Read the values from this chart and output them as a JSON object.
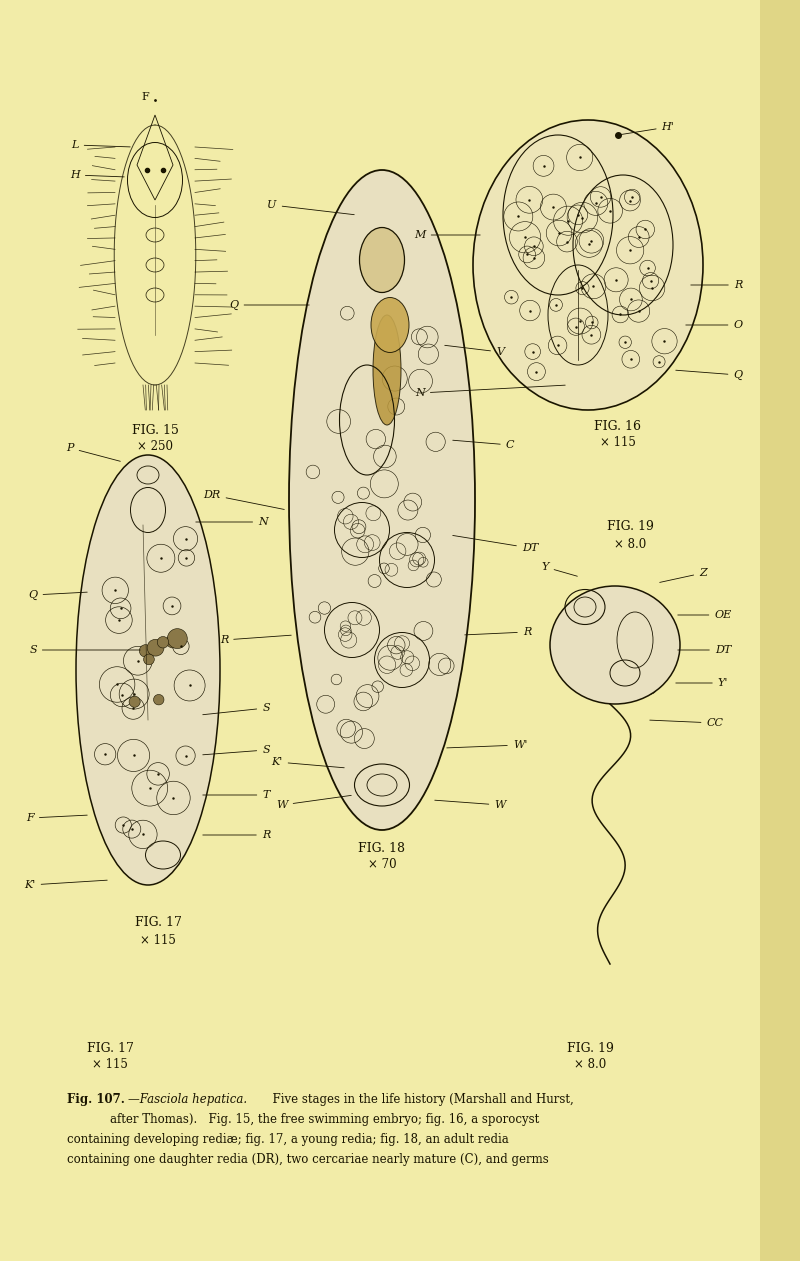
{
  "bg_color": "#f2eca8",
  "page_color": "#f0e8a0",
  "ink": "#1a1500",
  "fig_width": 8.0,
  "fig_height": 12.61,
  "dpi": 100,
  "caption_line1": "Fig. 107.—Fasciola hepatica.   Five stages in the life history (Marshall and Hurst,",
  "caption_line2": "after Thomas).   Fig. 15, the free swimming embryo; fig. 16, a sporocyst",
  "caption_line3": "containing developing rediæ; fig. 17, a young redia; fig. 18, an adult redia",
  "caption_line4": "containing one daughter redia (DR), two cercariae nearly mature (C), and germs",
  "right_shadow_color": "#d4c870"
}
